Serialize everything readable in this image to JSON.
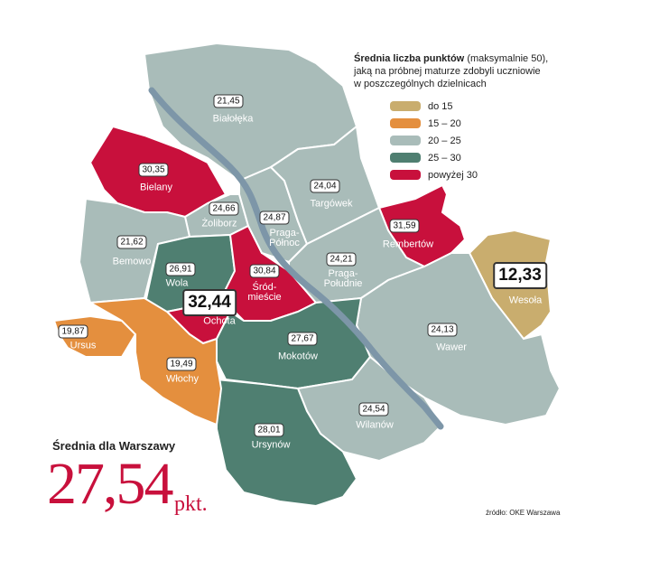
{
  "title": "Średnia liczba punktów",
  "subtitle": "(maksymalnie 50),\njaką na próbnej maturze zdobyli uczniowie\nw poszczególnych dzielnicach",
  "legend": [
    {
      "label": "do 15",
      "color": "#c9ad6e"
    },
    {
      "label": "15 – 20",
      "color": "#e48f3e"
    },
    {
      "label": "20 – 25",
      "color": "#a9bcb9"
    },
    {
      "label": "25 – 30",
      "color": "#4f7f71"
    },
    {
      "label": "powyżej 30",
      "color": "#c8103c"
    }
  ],
  "districts": [
    {
      "name": "Białołęka",
      "value": 21.45,
      "value_label": "21,45",
      "color": "#a9bcb9"
    },
    {
      "name": "Bielany",
      "value": 30.35,
      "value_label": "30,35",
      "color": "#c8103c"
    },
    {
      "name": "Żoliborz",
      "value": 24.66,
      "value_label": "24,66",
      "color": "#a9bcb9"
    },
    {
      "name": "Bemowo",
      "value": 21.62,
      "value_label": "21,62",
      "color": "#a9bcb9"
    },
    {
      "name": "Wola",
      "value": 26.91,
      "value_label": "26,91",
      "color": "#4f7f71"
    },
    {
      "name": "Ochota",
      "value": 32.44,
      "value_label": "32,44",
      "color": "#c8103c"
    },
    {
      "name": "Śród-\nmieście",
      "value": 30.84,
      "value_label": "30,84",
      "color": "#c8103c"
    },
    {
      "name": "Praga-\nPółnoc",
      "value": 24.87,
      "value_label": "24,87",
      "color": "#a9bcb9"
    },
    {
      "name": "Targówek",
      "value": 24.04,
      "value_label": "24,04",
      "color": "#a9bcb9"
    },
    {
      "name": "Rembertów",
      "value": 31.59,
      "value_label": "31,59",
      "color": "#c8103c"
    },
    {
      "name": "Praga-\nPołudnie",
      "value": 24.21,
      "value_label": "24,21",
      "color": "#a9bcb9"
    },
    {
      "name": "Wesoła",
      "value": 12.33,
      "value_label": "12,33",
      "color": "#c9ad6e"
    },
    {
      "name": "Wawer",
      "value": 24.13,
      "value_label": "24,13",
      "color": "#a9bcb9"
    },
    {
      "name": "Mokotów",
      "value": 27.67,
      "value_label": "27,67",
      "color": "#4f7f71"
    },
    {
      "name": "Wilanów",
      "value": 24.54,
      "value_label": "24,54",
      "color": "#a9bcb9"
    },
    {
      "name": "Ursynów",
      "value": 28.01,
      "value_label": "28,01",
      "color": "#4f7f71"
    },
    {
      "name": "Ursus",
      "value": 19.87,
      "value_label": "19,87",
      "color": "#e48f3e"
    },
    {
      "name": "Włochy",
      "value": 19.49,
      "value_label": "19,49",
      "color": "#e48f3e"
    }
  ],
  "summary": {
    "label": "Średnia dla Warszawy",
    "value": 27.54,
    "value_label": "27,54",
    "unit": "pkt."
  },
  "source": "źródło: OKE Warszawa"
}
